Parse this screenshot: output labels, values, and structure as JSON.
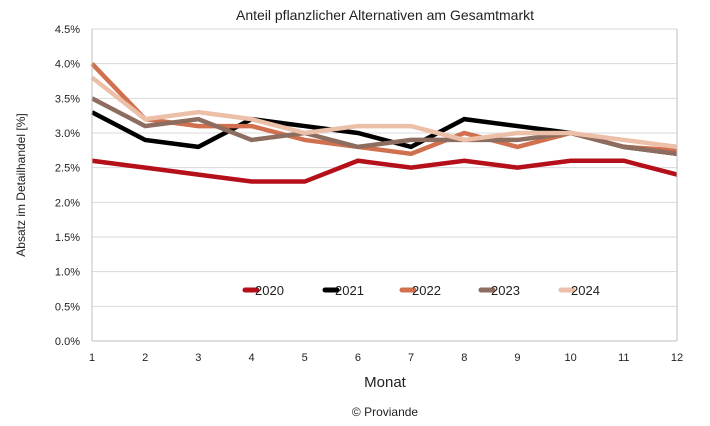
{
  "chart_data": {
    "type": "line",
    "title": "Anteil pflanzlicher Alternativen am Gesamtmarkt",
    "xlabel": "Monat",
    "ylabel": "Absatz im Detailhandel [%]",
    "x": [
      1,
      2,
      3,
      4,
      5,
      6,
      7,
      8,
      9,
      10,
      11,
      12
    ],
    "ylim": [
      0,
      4.5
    ],
    "yticks": [
      "0.0%",
      "0.5%",
      "1.0%",
      "1.5%",
      "2.0%",
      "2.5%",
      "3.0%",
      "3.5%",
      "4.0%",
      "4.5%"
    ],
    "ytick_values": [
      0,
      0.5,
      1,
      1.5,
      2,
      2.5,
      3,
      3.5,
      4,
      4.5
    ],
    "grid": true,
    "legend_position": "inside-bottom-center",
    "series": [
      {
        "name": "2020",
        "color": "#b50f1a",
        "values": [
          2.6,
          2.5,
          2.4,
          2.3,
          2.3,
          2.6,
          2.5,
          2.6,
          2.5,
          2.6,
          2.6,
          2.4
        ]
      },
      {
        "name": "2021",
        "color": "#000000",
        "values": [
          3.3,
          2.9,
          2.8,
          3.2,
          3.1,
          3.0,
          2.8,
          3.2,
          3.1,
          3.0,
          2.8,
          2.7
        ]
      },
      {
        "name": "2022",
        "color": "#d0704f",
        "values": [
          4.0,
          3.2,
          3.1,
          3.1,
          2.9,
          2.8,
          2.7,
          3.0,
          2.8,
          3.0,
          2.8,
          2.75
        ]
      },
      {
        "name": "2023",
        "color": "#8c6d5f",
        "values": [
          3.5,
          3.1,
          3.2,
          2.9,
          3.0,
          2.8,
          2.9,
          2.9,
          2.9,
          3.0,
          2.8,
          2.7
        ]
      },
      {
        "name": "2024",
        "color": "#ecbfa8",
        "values": [
          3.8,
          3.2,
          3.3,
          3.2,
          3.0,
          3.1,
          3.1,
          2.9,
          3.0,
          3.0,
          2.9,
          2.8
        ]
      }
    ]
  },
  "footer": {
    "copyright": "© Proviande"
  }
}
